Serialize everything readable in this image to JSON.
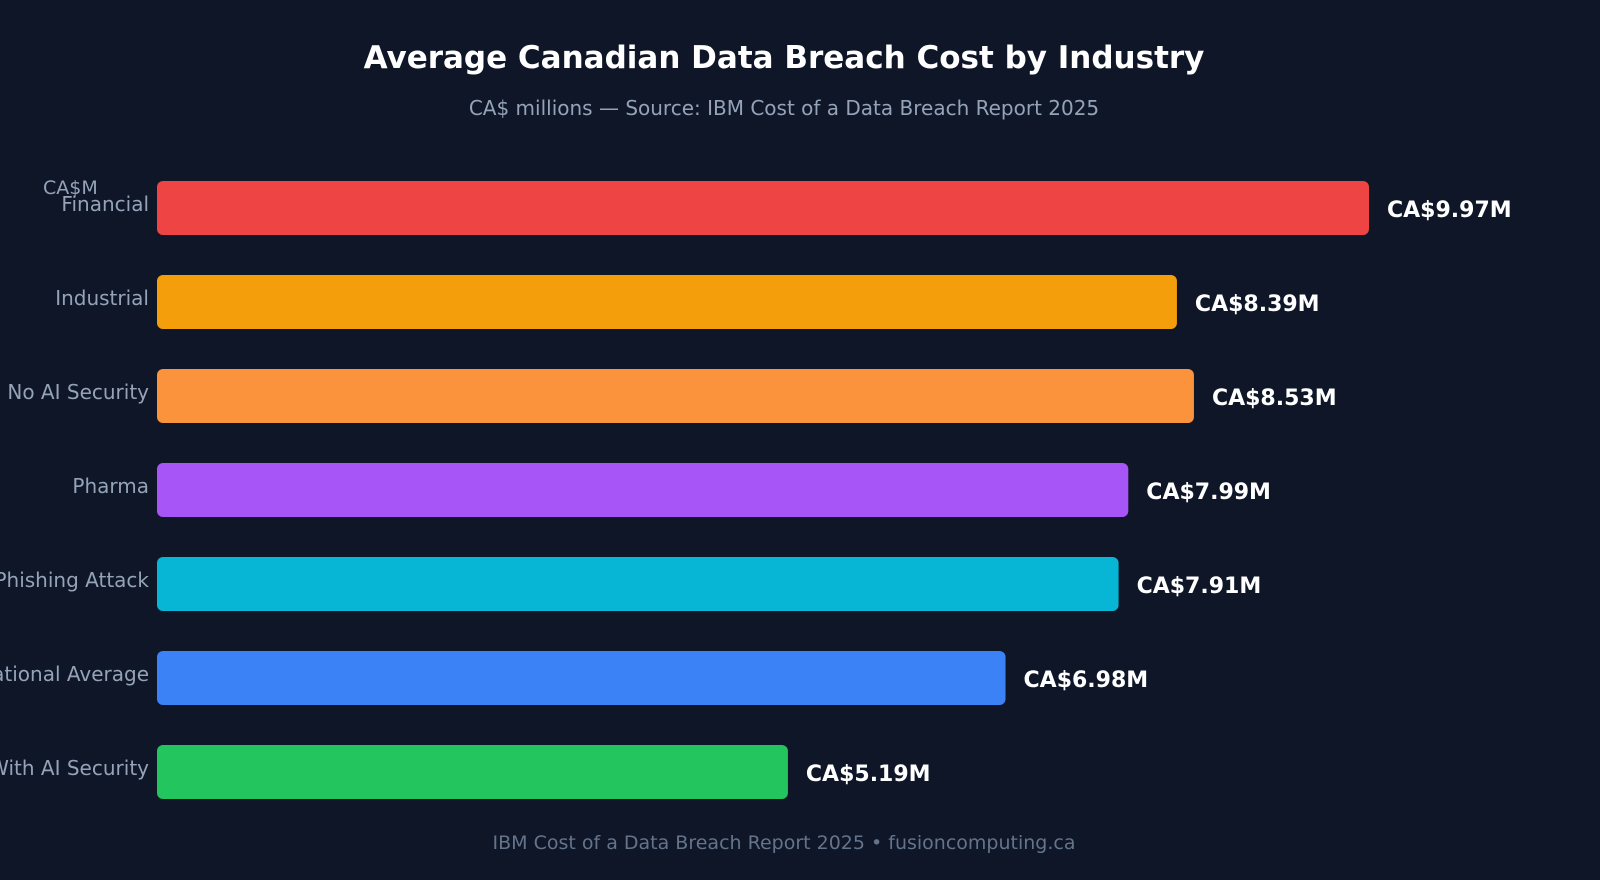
{
  "chart_data": {
    "type": "bar",
    "orientation": "horizontal",
    "title": "Average Canadian Data Breach Cost by Industry",
    "subtitle": "CA$ millions — Source: IBM Cost of a Data Breach Report 2025",
    "ylabel": "CA$M",
    "categories": [
      "Financial",
      "Industrial",
      "No AI Security",
      "Pharma",
      "Phishing Attack",
      "National Average",
      "With AI Security"
    ],
    "values": [
      9.97,
      8.39,
      8.53,
      7.99,
      7.91,
      6.98,
      5.19
    ],
    "data_labels": [
      "CA$9.97M",
      "CA$8.39M",
      "CA$8.53M",
      "CA$7.99M",
      "CA$7.91M",
      "CA$6.98M",
      "CA$5.19M"
    ],
    "colors": [
      "#ef4444",
      "#f59e0b",
      "#fb923c",
      "#a855f7",
      "#06b6d4",
      "#3b82f6",
      "#22c55e"
    ],
    "grid": false,
    "legend": "none"
  },
  "footer": "IBM Cost of a Data Breach Report 2025 • fusioncomputing.ca"
}
